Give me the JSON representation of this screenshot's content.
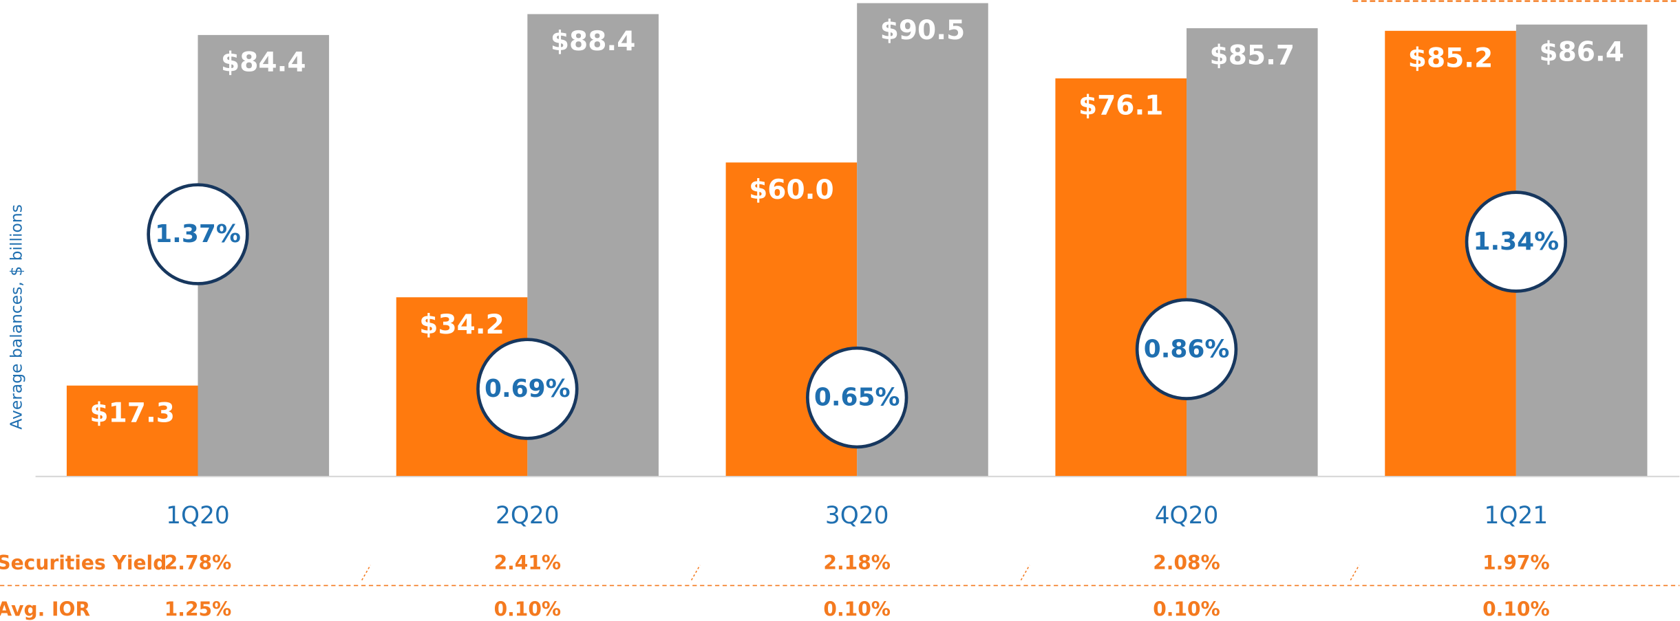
{
  "chart_data": {
    "type": "bar",
    "y_label": "Average balances, $ billions",
    "categories": [
      "1Q20",
      "2Q20",
      "3Q20",
      "4Q20",
      "1Q21"
    ],
    "series": [
      {
        "color": "#ff7a0e",
        "values": [
          17.3,
          34.2,
          60.0,
          76.1,
          85.2
        ],
        "value_labels": [
          "$17.3",
          "$34.2",
          "$60.0",
          "$76.1",
          "$85.2"
        ]
      },
      {
        "color": "#a6a6a6",
        "values": [
          84.4,
          88.4,
          90.5,
          85.7,
          86.4
        ],
        "value_labels": [
          "$84.4",
          "$88.4",
          "$90.5",
          "$85.7",
          "$86.4"
        ]
      }
    ],
    "annotations": [
      "1.37%",
      "0.69%",
      "0.65%",
      "0.86%",
      "1.34%"
    ],
    "ylim": [
      0,
      91.1
    ],
    "table": {
      "rows": [
        {
          "label": "Securities Yield",
          "values": [
            "2.78%",
            "2.41%",
            "2.18%",
            "2.08%",
            "1.97%"
          ]
        },
        {
          "label": "Avg. IOR",
          "values": [
            "1.25%",
            "0.10%",
            "0.10%",
            "0.10%",
            "0.10%"
          ]
        }
      ]
    }
  }
}
